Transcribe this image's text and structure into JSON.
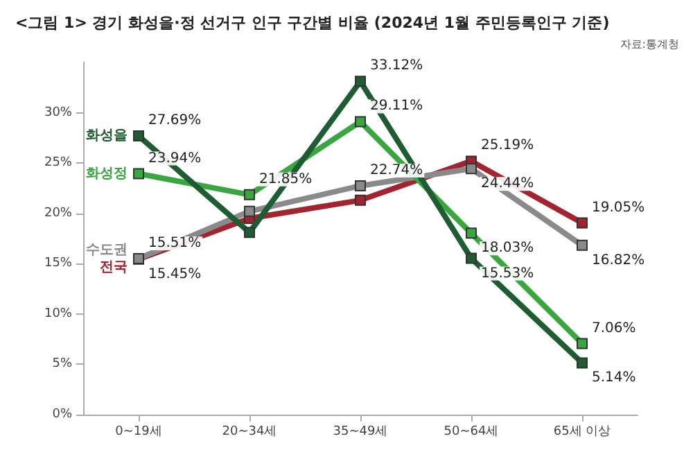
{
  "chart_data": {
    "type": "line",
    "title": "<그림 1> 경기 화성을·정 선거구 인구 구간별 비율 (2024년 1월 주민등록인구 기준)",
    "annotations": [
      "자료:통계청"
    ],
    "categories": [
      "0~19세",
      "20~34세",
      "35~49세",
      "50~64세",
      "65세 이상"
    ],
    "series": [
      {
        "name": "화성을",
        "color": "#1e5c32",
        "values": [
          27.69,
          18.1,
          33.12,
          15.53,
          5.14
        ],
        "value_labels": [
          "27.69%",
          null,
          "33.12%",
          "15.53%",
          "5.14%"
        ]
      },
      {
        "name": "화성정",
        "color": "#3aa63f",
        "values": [
          23.94,
          21.85,
          29.11,
          18.03,
          7.06
        ],
        "value_labels": [
          "23.94%",
          "21.85%",
          "29.11%",
          "18.03%",
          "7.06%"
        ]
      },
      {
        "name": "수도권",
        "color": "#8a8a8a",
        "values": [
          15.51,
          20.2,
          22.74,
          24.44,
          16.82
        ],
        "value_labels": [
          "15.51%",
          null,
          "22.74%",
          "24.44%",
          "16.82%"
        ]
      },
      {
        "name": "전국",
        "color": "#a3232f",
        "values": [
          15.45,
          19.5,
          21.3,
          25.19,
          19.05
        ],
        "value_labels": [
          "15.45%",
          null,
          null,
          "25.19%",
          "19.05%"
        ]
      }
    ],
    "ylim": [
      0,
      35
    ],
    "yticks": [
      {
        "value": 0,
        "label": "0%"
      },
      {
        "value": 5,
        "label": "5%"
      },
      {
        "value": 10,
        "label": "10%"
      },
      {
        "value": 15,
        "label": "15%"
      },
      {
        "value": 20,
        "label": "20%"
      },
      {
        "value": 25,
        "label": "25%"
      },
      {
        "value": 30,
        "label": "30%"
      }
    ],
    "grid": false,
    "legend": false,
    "marker": "square",
    "line_style": "solid"
  }
}
